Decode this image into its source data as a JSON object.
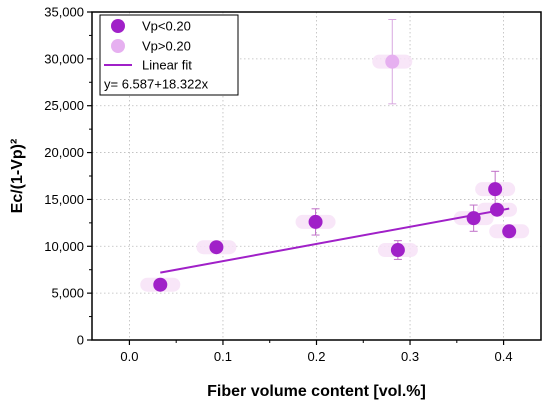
{
  "chart_data": {
    "type": "scatter",
    "xlabel": "Fiber volume content [vol.%]",
    "ylabel": "Ec/(1-Vp)²",
    "xlim": [
      -0.04,
      0.44
    ],
    "ylim": [
      0,
      35000
    ],
    "x_ticks": [
      0.0,
      0.1,
      0.2,
      0.3,
      0.4
    ],
    "x_tick_labels": [
      "0.0",
      "0.1",
      "0.2",
      "0.3",
      "0.4"
    ],
    "y_ticks": [
      0,
      5000,
      10000,
      15000,
      20000,
      25000,
      30000,
      35000
    ],
    "y_tick_labels": [
      "0",
      "5,000",
      "10,000",
      "15,000",
      "20,000",
      "25,000",
      "30,000",
      "35,000"
    ],
    "grid": true,
    "legend_position": "top-left",
    "series": [
      {
        "name": "Vp<0.20",
        "color": "#a020c8",
        "points": [
          {
            "x": 0.033,
            "y": 5900,
            "err": 0
          },
          {
            "x": 0.093,
            "y": 9900,
            "err": 0
          },
          {
            "x": 0.199,
            "y": 12600,
            "err": 1400
          },
          {
            "x": 0.287,
            "y": 9600,
            "err": 1000
          },
          {
            "x": 0.368,
            "y": 13000,
            "err": 1400
          },
          {
            "x": 0.391,
            "y": 16100,
            "err": 1900
          },
          {
            "x": 0.393,
            "y": 13900,
            "err": 0
          },
          {
            "x": 0.406,
            "y": 11600,
            "err": 500
          }
        ]
      },
      {
        "name": "Vp>0.20",
        "color": "#e6b0f0",
        "points": [
          {
            "x": 0.281,
            "y": 29700,
            "err": 4500
          }
        ]
      }
    ],
    "fit": {
      "name": "Linear fit",
      "equation": "y= 6.587+18.322x",
      "color": "#a020c8",
      "x_start": 0.033,
      "x_end": 0.406,
      "intercept": 6587,
      "slope": 18322
    }
  }
}
